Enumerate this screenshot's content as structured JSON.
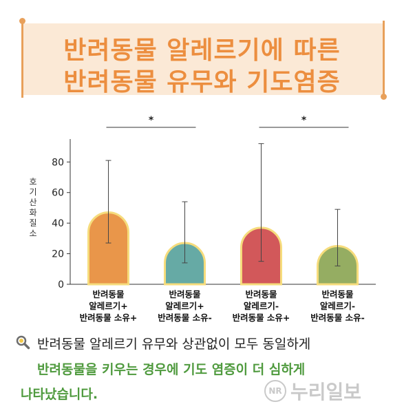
{
  "title": {
    "line1": "반려동물 알레르기에 따른",
    "line2": "반려동물 유무와 기도염증"
  },
  "chart_data": {
    "type": "bar",
    "ylabel": "호기산화질소",
    "ylim": [
      0,
      95
    ],
    "yticks": [
      0,
      20,
      40,
      60,
      80
    ],
    "categories": [
      [
        "반려동물",
        "알레르기+",
        "반려동물 소유+"
      ],
      [
        "반려동물",
        "알레르기+",
        "반려동물 소유-"
      ],
      [
        "반려동물",
        "알레르기-",
        "반려동물 소유+"
      ],
      [
        "반려동물",
        "알레르기-",
        "반려동물 소유-"
      ]
    ],
    "values": [
      47,
      27,
      37,
      25
    ],
    "error_low": [
      27,
      14,
      15,
      12
    ],
    "error_high": [
      81,
      54,
      92,
      49
    ],
    "colors": [
      "#e9964a",
      "#66aaa5",
      "#d2585a",
      "#95ad62"
    ],
    "outline_color": "#f6dc7c",
    "significance": [
      {
        "from": 0,
        "to": 1,
        "label": "*"
      },
      {
        "from": 2,
        "to": 3,
        "label": "*"
      }
    ]
  },
  "caption": {
    "line1": "반려동물 알레르기 유무와 상관없이 모두 동일하게",
    "line2": "반려동물을 키우는 경우에 기도 염증이 더 심하게",
    "line3": "나타났습니다."
  },
  "watermark": {
    "badge": "NR",
    "text": "누리일보"
  }
}
